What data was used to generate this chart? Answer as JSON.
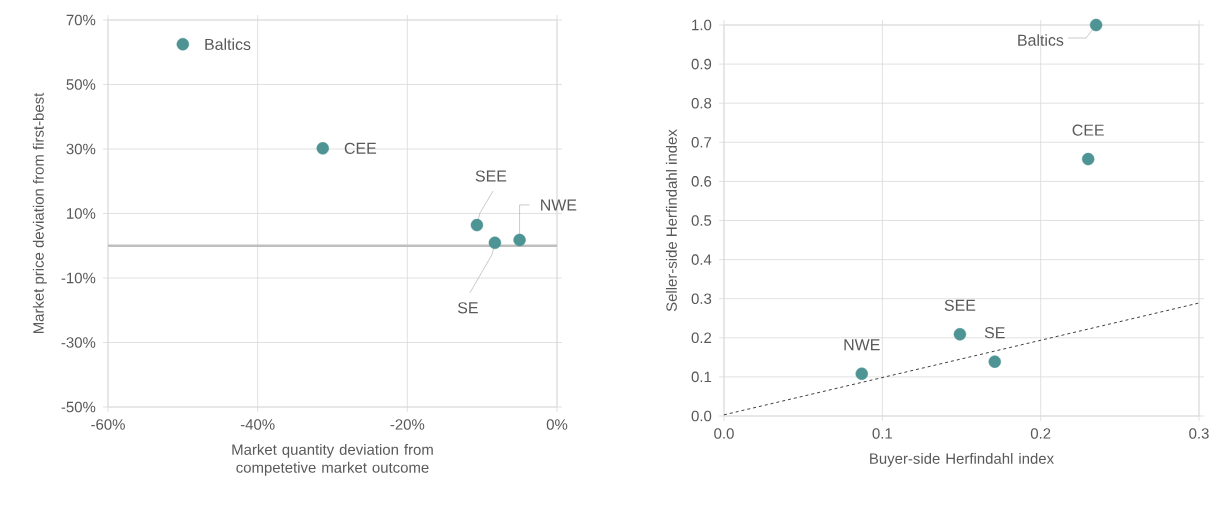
{
  "chart_data": [
    {
      "type": "scatter",
      "xlabel": "Market quantity deviation from competetive market outcome",
      "ylabel": "Market price deviation from first-best",
      "xlim": [
        -60,
        0
      ],
      "xticks": [
        {
          "value": -60,
          "label": "-60%"
        },
        {
          "value": -40,
          "label": "-40%"
        },
        {
          "value": -20,
          "label": "-20%"
        },
        {
          "value": 0,
          "label": "0%"
        }
      ],
      "ylim": [
        -50,
        70
      ],
      "yticks": [
        {
          "value": -50,
          "label": "-50%"
        },
        {
          "value": -30,
          "label": "-30%"
        },
        {
          "value": -10,
          "label": "-10%"
        },
        {
          "value": 10,
          "label": "10%"
        },
        {
          "value": 30,
          "label": "30%"
        },
        {
          "value": 50,
          "label": "50%"
        },
        {
          "value": 70,
          "label": "70%"
        }
      ],
      "grid": true,
      "marker": "circle",
      "series": [
        {
          "color": "#4e9494",
          "x": [
            -50,
            -31.3,
            -10.7,
            -8.3,
            -5.0
          ],
          "values": [
            62.5,
            30.2,
            6.4,
            0.9,
            1.8
          ]
        }
      ],
      "ref_lines": [
        {
          "axis": "y",
          "value": 0,
          "color": "#bfbfbf"
        }
      ],
      "annotations": [
        {
          "text": "Baltics",
          "x": -50,
          "y": 62.5
        },
        {
          "text": "CEE",
          "x": -31.3,
          "y": 30.2
        },
        {
          "text": "SEE",
          "x": -10.7,
          "y": 6.4
        },
        {
          "text": "SE",
          "x": -8.3,
          "y": 0.9
        },
        {
          "text": "NWE",
          "x": -5.0,
          "y": 1.8
        }
      ]
    },
    {
      "type": "scatter",
      "xlabel": "Buyer-side Herfindahl index",
      "ylabel": "Seller-side Herfindahl index",
      "xlim": [
        0,
        0.3
      ],
      "xticks": [
        {
          "value": 0,
          "label": "0.0"
        },
        {
          "value": 0.1,
          "label": "0.1"
        },
        {
          "value": 0.2,
          "label": "0.2"
        },
        {
          "value": 0.3,
          "label": "0.3"
        }
      ],
      "ylim": [
        0,
        1.0
      ],
      "yticks": [
        {
          "value": 0,
          "label": "0.0"
        },
        {
          "value": 0.1,
          "label": "0.1"
        },
        {
          "value": 0.2,
          "label": "0.2"
        },
        {
          "value": 0.3,
          "label": "0.3"
        },
        {
          "value": 0.4,
          "label": "0.4"
        },
        {
          "value": 0.5,
          "label": "0.5"
        },
        {
          "value": 0.6,
          "label": "0.6"
        },
        {
          "value": 0.7,
          "label": "0.7"
        },
        {
          "value": 0.8,
          "label": "0.8"
        },
        {
          "value": 0.9,
          "label": "0.9"
        },
        {
          "value": 1.0,
          "label": "1.0"
        }
      ],
      "grid": true,
      "marker": "circle",
      "series": [
        {
          "color": "#4e9494",
          "x": [
            0.235,
            0.23,
            0.149,
            0.171,
            0.087
          ],
          "values": [
            1.0,
            0.657,
            0.209,
            0.139,
            0.108
          ]
        },
        {
          "type": "line",
          "color": "#404040",
          "line_style": "dashed",
          "marker": "none",
          "x": [
            0,
            0.3
          ],
          "values": [
            0.003,
            0.289
          ]
        }
      ],
      "annotations": [
        {
          "text": "Baltics",
          "x": 0.235,
          "y": 1.0
        },
        {
          "text": "CEE",
          "x": 0.23,
          "y": 0.657
        },
        {
          "text": "SEE",
          "x": 0.149,
          "y": 0.209
        },
        {
          "text": "SE",
          "x": 0.171,
          "y": 0.139
        },
        {
          "text": "NWE",
          "x": 0.087,
          "y": 0.108
        }
      ]
    }
  ]
}
